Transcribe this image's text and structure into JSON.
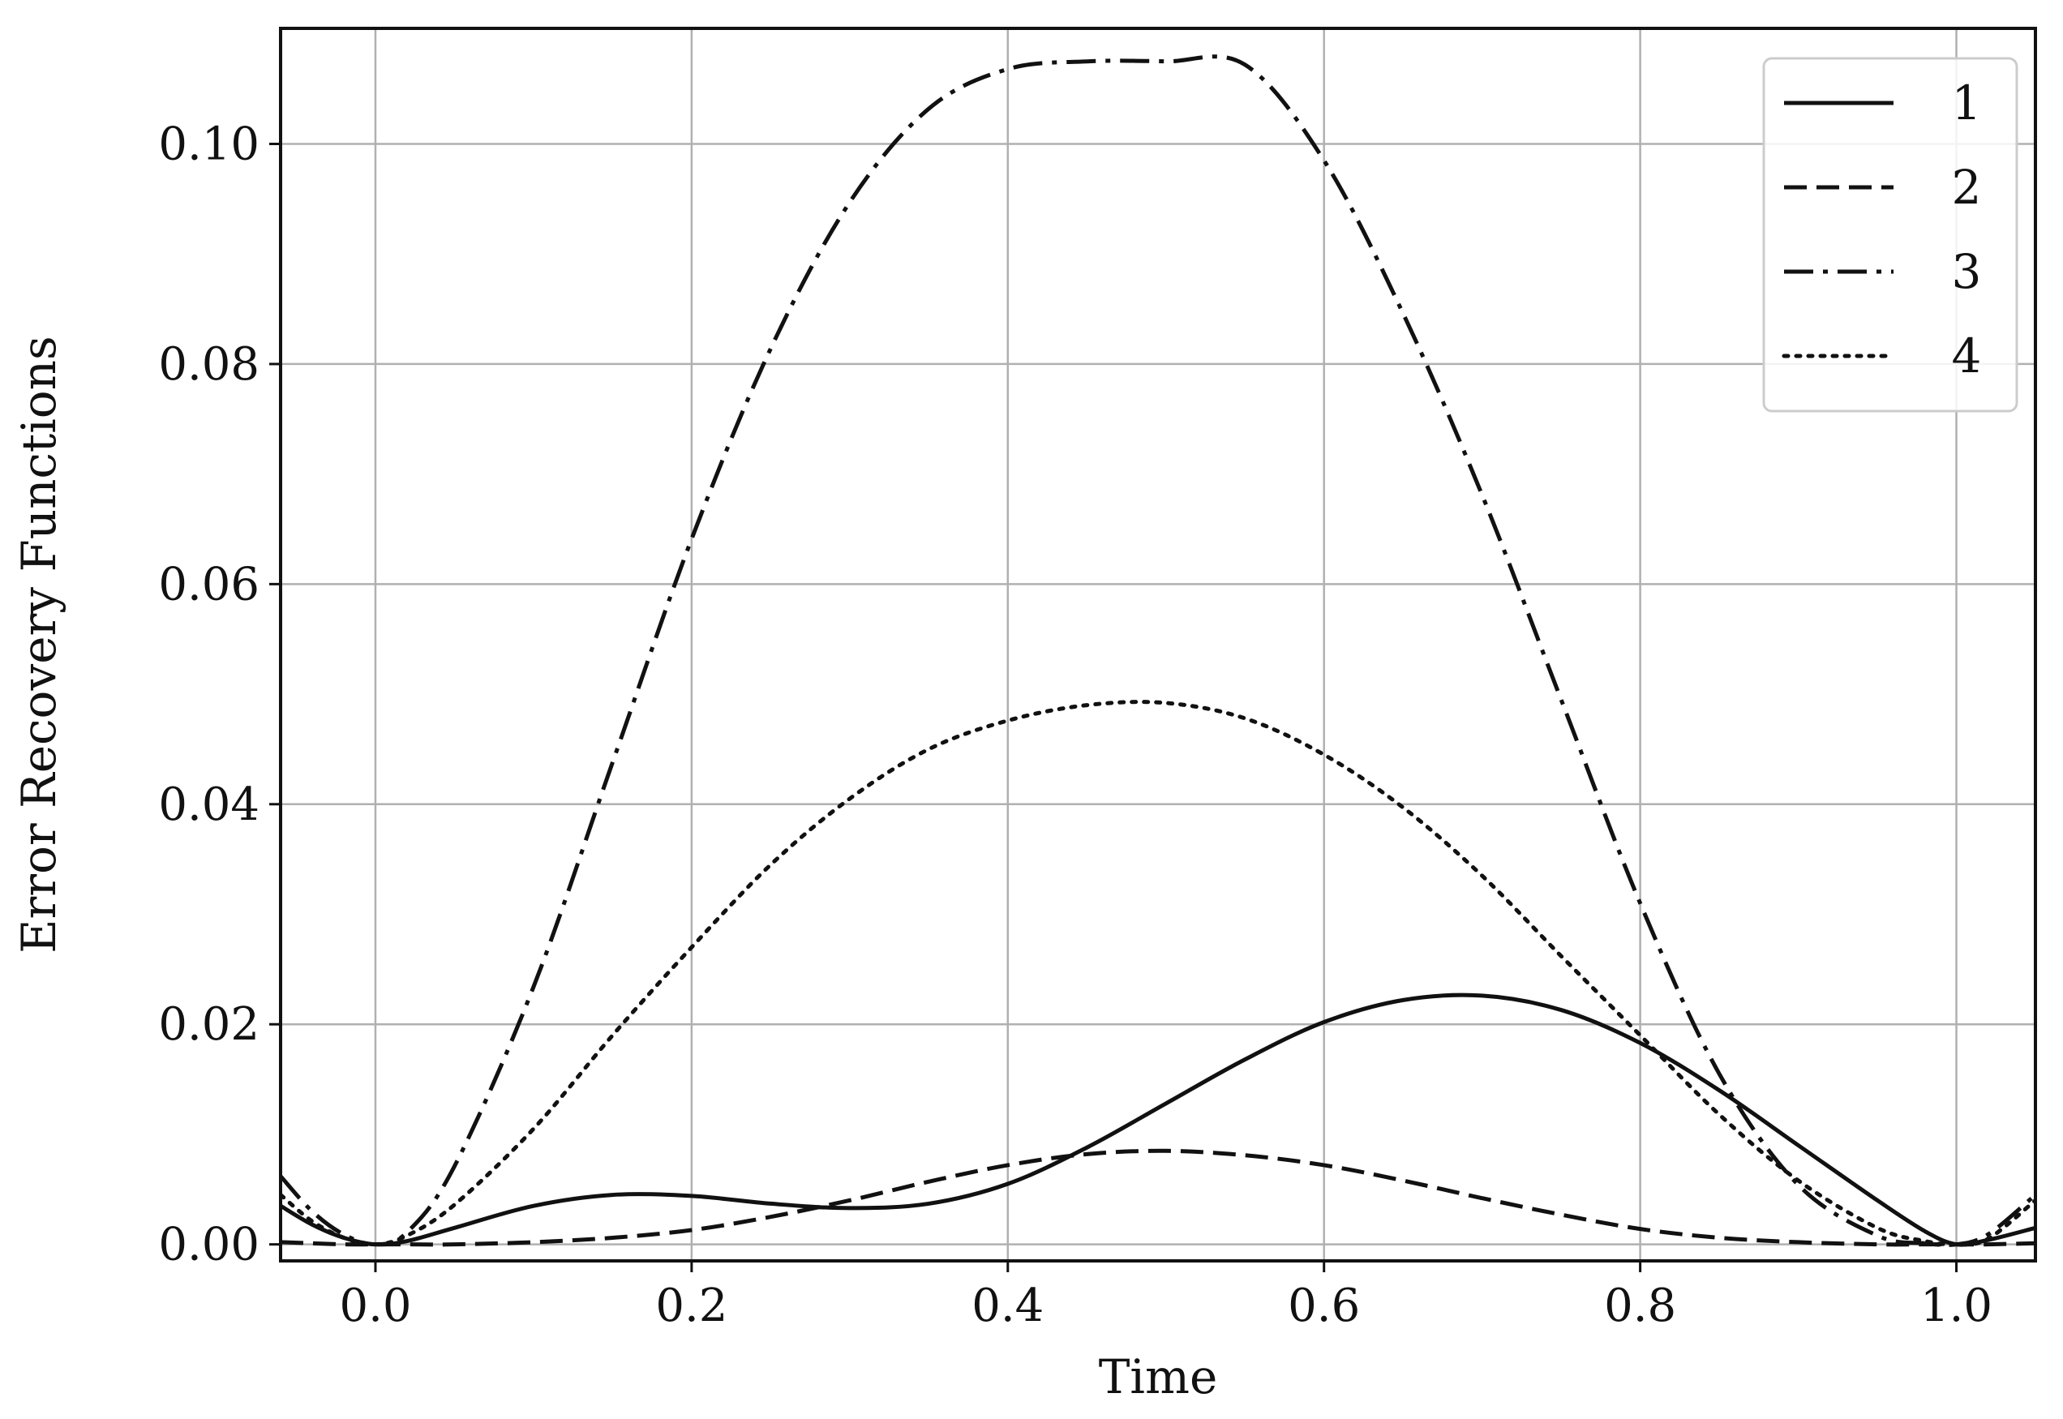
{
  "chart_data": {
    "type": "line",
    "title": "",
    "xlabel": "Time",
    "ylabel": "Error Recovery Functions",
    "xlim": [
      -0.06,
      1.05
    ],
    "ylim": [
      -0.0015,
      0.1105
    ],
    "xticks": [
      "0.0",
      "0.2",
      "0.4",
      "0.6",
      "0.8",
      "1.0"
    ],
    "yticks": [
      "0.00",
      "0.02",
      "0.04",
      "0.06",
      "0.08",
      "0.10"
    ],
    "grid": true,
    "legend_position": "top-right",
    "x": [
      -0.06,
      -0.04,
      -0.02,
      0.0,
      0.02,
      0.05,
      0.1,
      0.15,
      0.2,
      0.25,
      0.3,
      0.35,
      0.4,
      0.45,
      0.5,
      0.55,
      0.6,
      0.65,
      0.7,
      0.75,
      0.8,
      0.85,
      0.9,
      0.95,
      0.98,
      1.0,
      1.02,
      1.05
    ],
    "series": [
      {
        "name": "1",
        "style": "solid",
        "values": [
          0.0035,
          0.0018,
          0.0006,
          0.0,
          0.0003,
          0.0015,
          0.0035,
          0.0045,
          0.0044,
          0.0037,
          0.0033,
          0.0037,
          0.0055,
          0.0088,
          0.0128,
          0.0168,
          0.0202,
          0.0222,
          0.0226,
          0.0213,
          0.0183,
          0.014,
          0.009,
          0.004,
          0.0012,
          0.0,
          0.0004,
          0.0015
        ]
      },
      {
        "name": "2",
        "style": "dashed",
        "values": [
          0.0002,
          0.0001,
          0.0,
          0.0,
          0.0,
          0.0,
          0.0002,
          0.0006,
          0.0013,
          0.0025,
          0.004,
          0.0057,
          0.0072,
          0.0082,
          0.0085,
          0.0081,
          0.0072,
          0.0058,
          0.0042,
          0.0027,
          0.0014,
          0.0006,
          0.0002,
          0.0,
          0.0,
          0.0,
          0.0,
          0.0001
        ]
      },
      {
        "name": "3",
        "style": "dashdot",
        "values": [
          0.0062,
          0.003,
          0.0009,
          0.0,
          0.0011,
          0.0071,
          0.0234,
          0.0438,
          0.0641,
          0.0814,
          0.0947,
          0.1032,
          0.1068,
          0.1075,
          0.1075,
          0.1072,
          0.0985,
          0.0846,
          0.0681,
          0.0495,
          0.031,
          0.0155,
          0.0054,
          0.0008,
          0.0001,
          0.0,
          0.0009,
          0.0045
        ]
      },
      {
        "name": "4",
        "style": "dotted",
        "values": [
          0.0045,
          0.0021,
          0.0006,
          0.0,
          0.0008,
          0.0036,
          0.0105,
          0.019,
          0.027,
          0.0345,
          0.0405,
          0.045,
          0.0476,
          0.049,
          0.0492,
          0.0478,
          0.0445,
          0.0397,
          0.0335,
          0.0262,
          0.019,
          0.0118,
          0.0058,
          0.0015,
          0.0003,
          0.0,
          0.0005,
          0.004
        ]
      }
    ]
  }
}
